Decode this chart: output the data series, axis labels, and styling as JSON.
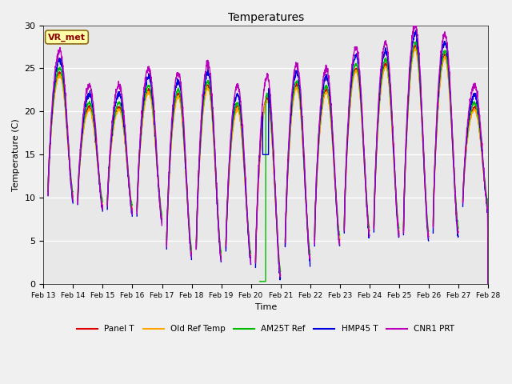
{
  "title": "Temperatures",
  "xlabel": "Time",
  "ylabel": "Temperature (C)",
  "ylim": [
    0,
    30
  ],
  "x_tick_labels": [
    "Feb 13",
    "Feb 14",
    "Feb 15",
    "Feb 16",
    "Feb 17",
    "Feb 18",
    "Feb 19",
    "Feb 20",
    "Feb 21",
    "Feb 22",
    "Feb 23",
    "Feb 24",
    "Feb 25",
    "Feb 26",
    "Feb 27",
    "Feb 28"
  ],
  "annotation_text": "VR_met",
  "annotation_color": "#8B0000",
  "annotation_bg": "#FFFFAA",
  "bg_color": "#E8E8E8",
  "fig_bg": "#F0F0F0",
  "series": {
    "Panel T": {
      "color": "#DD0000",
      "lw": 1.0
    },
    "Old Ref Temp": {
      "color": "#FFA500",
      "lw": 1.0
    },
    "AM25T Ref": {
      "color": "#00BB00",
      "lw": 1.0
    },
    "HMP45 T": {
      "color": "#0000DD",
      "lw": 1.0
    },
    "CNR1 PRT": {
      "color": "#BB00BB",
      "lw": 1.0
    }
  }
}
